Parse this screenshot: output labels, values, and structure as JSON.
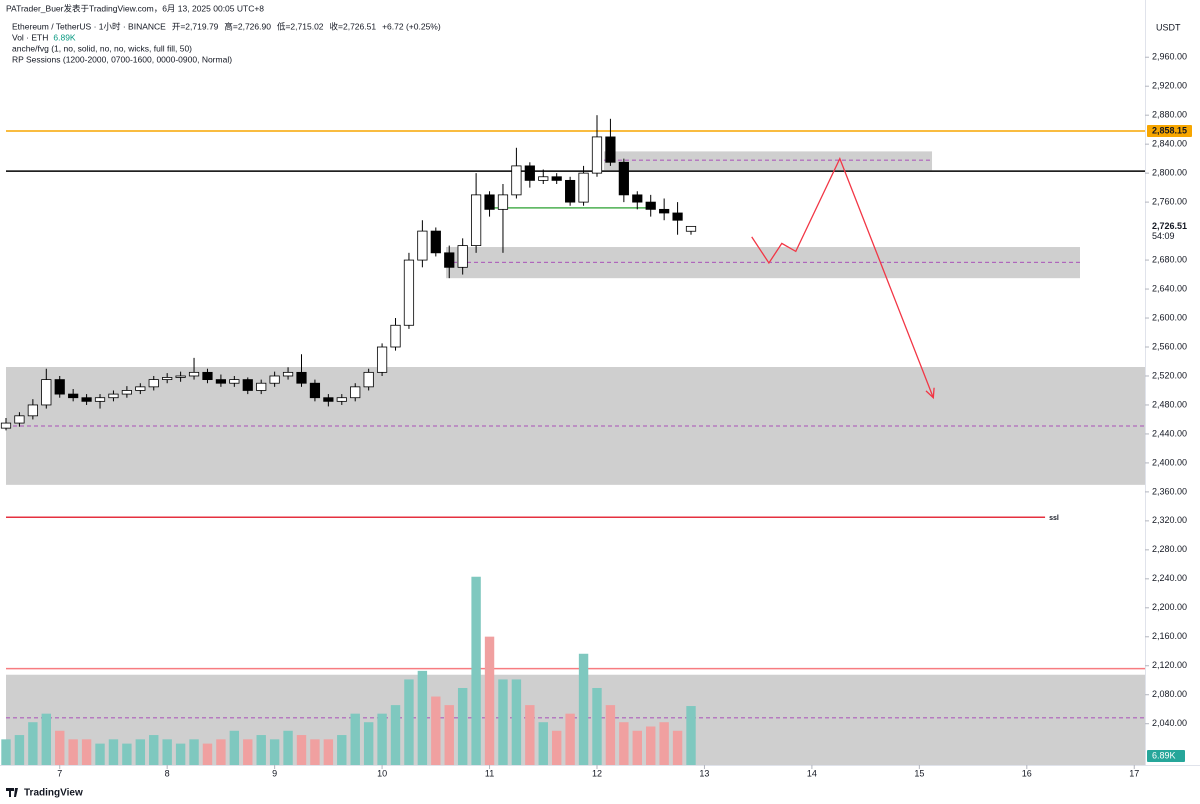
{
  "chart_data": {
    "type": "candlestick",
    "credit": "PATrader_Buer发表于TradingView.com，6月 13, 2025 00:05 UTC+8",
    "title": "Ethereum / TetherUS · 1小时 · BINANCE",
    "ohlc": [
      "开=2,719.79",
      "高=2,726.90",
      "低=2,715.02",
      "收=2,726.51",
      "+6.72 (+0.25%)"
    ],
    "indicators": [
      "Vol · ETH",
      "anche/fvg (1, no, solid, no, no, wicks, full fill, 50)",
      "RP Sessions (1200-2000, 0700-1600, 0000-0900, Normal)"
    ],
    "volume_text": "6.89K",
    "currency": "USDT",
    "brand": "TradingView",
    "x": [
      6.5,
      6.625,
      6.75,
      6.875,
      7,
      7.125,
      7.25,
      7.375,
      7.5,
      7.625,
      7.75,
      7.875,
      8,
      8.125,
      8.25,
      8.375,
      8.5,
      8.625,
      8.75,
      8.875,
      9,
      9.125,
      9.25,
      9.375,
      9.5,
      9.625,
      9.75,
      9.875,
      10,
      10.125,
      10.25,
      10.375,
      10.5,
      10.625,
      10.75,
      10.875,
      11,
      11.125,
      11.25,
      11.375,
      11.5,
      11.625,
      11.75,
      11.875,
      12,
      12.125,
      12.25,
      12.375,
      12.5,
      12.625,
      12.75,
      12.875
    ],
    "open": [
      2448,
      2455,
      2465,
      2480,
      2515,
      2495,
      2490,
      2485,
      2490,
      2495,
      2500,
      2505,
      2515,
      2518,
      2520,
      2525,
      2515,
      2510,
      2515,
      2500,
      2510,
      2520,
      2525,
      2510,
      2490,
      2485,
      2490,
      2505,
      2525,
      2560,
      2590,
      2680,
      2720,
      2690,
      2670,
      2700,
      2770,
      2750,
      2770,
      2810,
      2790,
      2795,
      2790,
      2760,
      2800,
      2850,
      2815,
      2770,
      2760,
      2750,
      2745,
      2719.79
    ],
    "high": [
      2462,
      2470,
      2488,
      2530,
      2520,
      2502,
      2495,
      2495,
      2500,
      2506,
      2510,
      2520,
      2524,
      2526,
      2545,
      2530,
      2522,
      2520,
      2518,
      2515,
      2526,
      2532,
      2550,
      2515,
      2495,
      2495,
      2510,
      2530,
      2565,
      2600,
      2690,
      2735,
      2725,
      2700,
      2710,
      2800,
      2775,
      2785,
      2835,
      2815,
      2805,
      2800,
      2795,
      2810,
      2880,
      2875,
      2820,
      2775,
      2770,
      2765,
      2760,
      2726.9
    ],
    "low": [
      2445,
      2450,
      2460,
      2475,
      2490,
      2485,
      2480,
      2475,
      2485,
      2490,
      2495,
      2500,
      2510,
      2512,
      2515,
      2510,
      2505,
      2505,
      2495,
      2495,
      2505,
      2515,
      2505,
      2485,
      2478,
      2480,
      2485,
      2500,
      2520,
      2555,
      2585,
      2670,
      2685,
      2655,
      2660,
      2690,
      2740,
      2690,
      2765,
      2780,
      2785,
      2785,
      2755,
      2755,
      2795,
      2810,
      2760,
      2750,
      2740,
      2735,
      2715,
      2715.02
    ],
    "close": [
      2455,
      2465,
      2480,
      2515,
      2495,
      2490,
      2485,
      2490,
      2495,
      2500,
      2505,
      2515,
      2518,
      2520,
      2525,
      2515,
      2510,
      2515,
      2500,
      2510,
      2520,
      2525,
      2510,
      2490,
      2485,
      2490,
      2505,
      2525,
      2560,
      2590,
      2680,
      2720,
      2690,
      2670,
      2700,
      2770,
      2750,
      2770,
      2810,
      2790,
      2795,
      2790,
      2760,
      2800,
      2850,
      2815,
      2770,
      2760,
      2750,
      2745,
      2735,
      2726.51
    ],
    "volume": [
      3,
      3.5,
      5,
      6,
      4,
      3,
      3,
      2.5,
      3,
      2.5,
      3,
      3.5,
      3,
      2.5,
      3,
      2.5,
      3,
      4,
      3,
      3.5,
      3,
      4,
      3.5,
      3,
      3,
      3.5,
      6,
      5,
      6,
      7,
      10,
      11,
      8,
      7,
      9,
      22,
      15,
      10,
      10,
      7,
      5,
      4,
      6,
      13,
      9,
      7,
      5,
      4,
      4.5,
      5,
      4,
      6.89
    ],
    "up_color": "#089981",
    "down_color": "#000000",
    "volume_up_color": "#7fc8bf",
    "volume_down_color": "#f0a0a0",
    "xlim": [
      6.5,
      17.1
    ],
    "xticks": [
      7,
      8,
      9,
      10,
      11,
      12,
      13,
      14,
      15,
      16,
      17
    ],
    "ylim": [
      1983,
      3039
    ],
    "y2lim": [
      0,
      89.4
    ],
    "yticks": [
      {
        "value": 2960,
        "label": "2,960.00"
      },
      {
        "value": 2920,
        "label": "2,920.00"
      },
      {
        "value": 2880,
        "label": "2,880.00"
      },
      {
        "value": 2840,
        "label": "2,840.00"
      },
      {
        "value": 2800,
        "label": "2,800.00"
      },
      {
        "value": 2760,
        "label": "2,760.00"
      },
      {
        "value": 2680,
        "label": "2,680.00"
      },
      {
        "value": 2640,
        "label": "2,640.00"
      },
      {
        "value": 2600,
        "label": "2,600.00"
      },
      {
        "value": 2560,
        "label": "2,560.00"
      },
      {
        "value": 2520,
        "label": "2,520.00"
      },
      {
        "value": 2480,
        "label": "2,480.00"
      },
      {
        "value": 2440,
        "label": "2,440.00"
      },
      {
        "value": 2400,
        "label": "2,400.00"
      },
      {
        "value": 2360,
        "label": "2,360.00"
      },
      {
        "value": 2320,
        "label": "2,320.00"
      },
      {
        "value": 2280,
        "label": "2,280.00"
      },
      {
        "value": 2240,
        "label": "2,240.00"
      },
      {
        "value": 2200,
        "label": "2,200.00"
      },
      {
        "value": 2160,
        "label": "2,160.00"
      },
      {
        "value": 2120,
        "label": "2,120.00"
      },
      {
        "value": 2080,
        "label": "2,080.00"
      },
      {
        "value": 2040,
        "label": "2,040.00"
      }
    ],
    "zones": [
      {
        "x0": 6.5,
        "x1": 17.1,
        "y0": 2369.7,
        "y1": 2532.4,
        "mid": 2451
      },
      {
        "x0": 10.595,
        "x1": 16.495,
        "y0": 2655,
        "y1": 2698,
        "mid": 2677
      },
      {
        "x0": 12.065,
        "x1": 15.118,
        "y0": 2804,
        "y1": 2830,
        "mid": 2818
      },
      {
        "x0": 6.5,
        "x1": 17.1,
        "y0": 1983,
        "y1": 2107.6,
        "mid": 2048
      }
    ],
    "lines": [
      {
        "y": 2858.15,
        "color": "#f7a600",
        "x0": 6.5,
        "x1": 17.1
      },
      {
        "y": 2802.8,
        "color": "#000000",
        "x0": 6.5,
        "x1": 17.1
      },
      {
        "y": 2325,
        "color": "#e5303f",
        "x0": 6.5,
        "x1": 16.17,
        "label": "ssl"
      },
      {
        "y": 2116,
        "color": "#f77c80",
        "x0": 6.5,
        "x1": 17.1
      },
      {
        "y": 2752,
        "color": "#4caf50",
        "x0": 11.04,
        "x1": 12.46
      }
    ],
    "drawing": {
      "color": "#f23645",
      "x": [
        13.44,
        13.6,
        13.72,
        13.85,
        14.26,
        15.13
      ],
      "y": [
        2712,
        2676,
        2703,
        2692,
        2820,
        2490
      ]
    },
    "price_labels": [
      {
        "value": 2858.15,
        "label": "2,858.15",
        "color": "#f7a600"
      },
      {
        "value": 2726.51,
        "label": "2,726.51",
        "countdown": "54:09",
        "color": "#ffffff"
      }
    ]
  }
}
